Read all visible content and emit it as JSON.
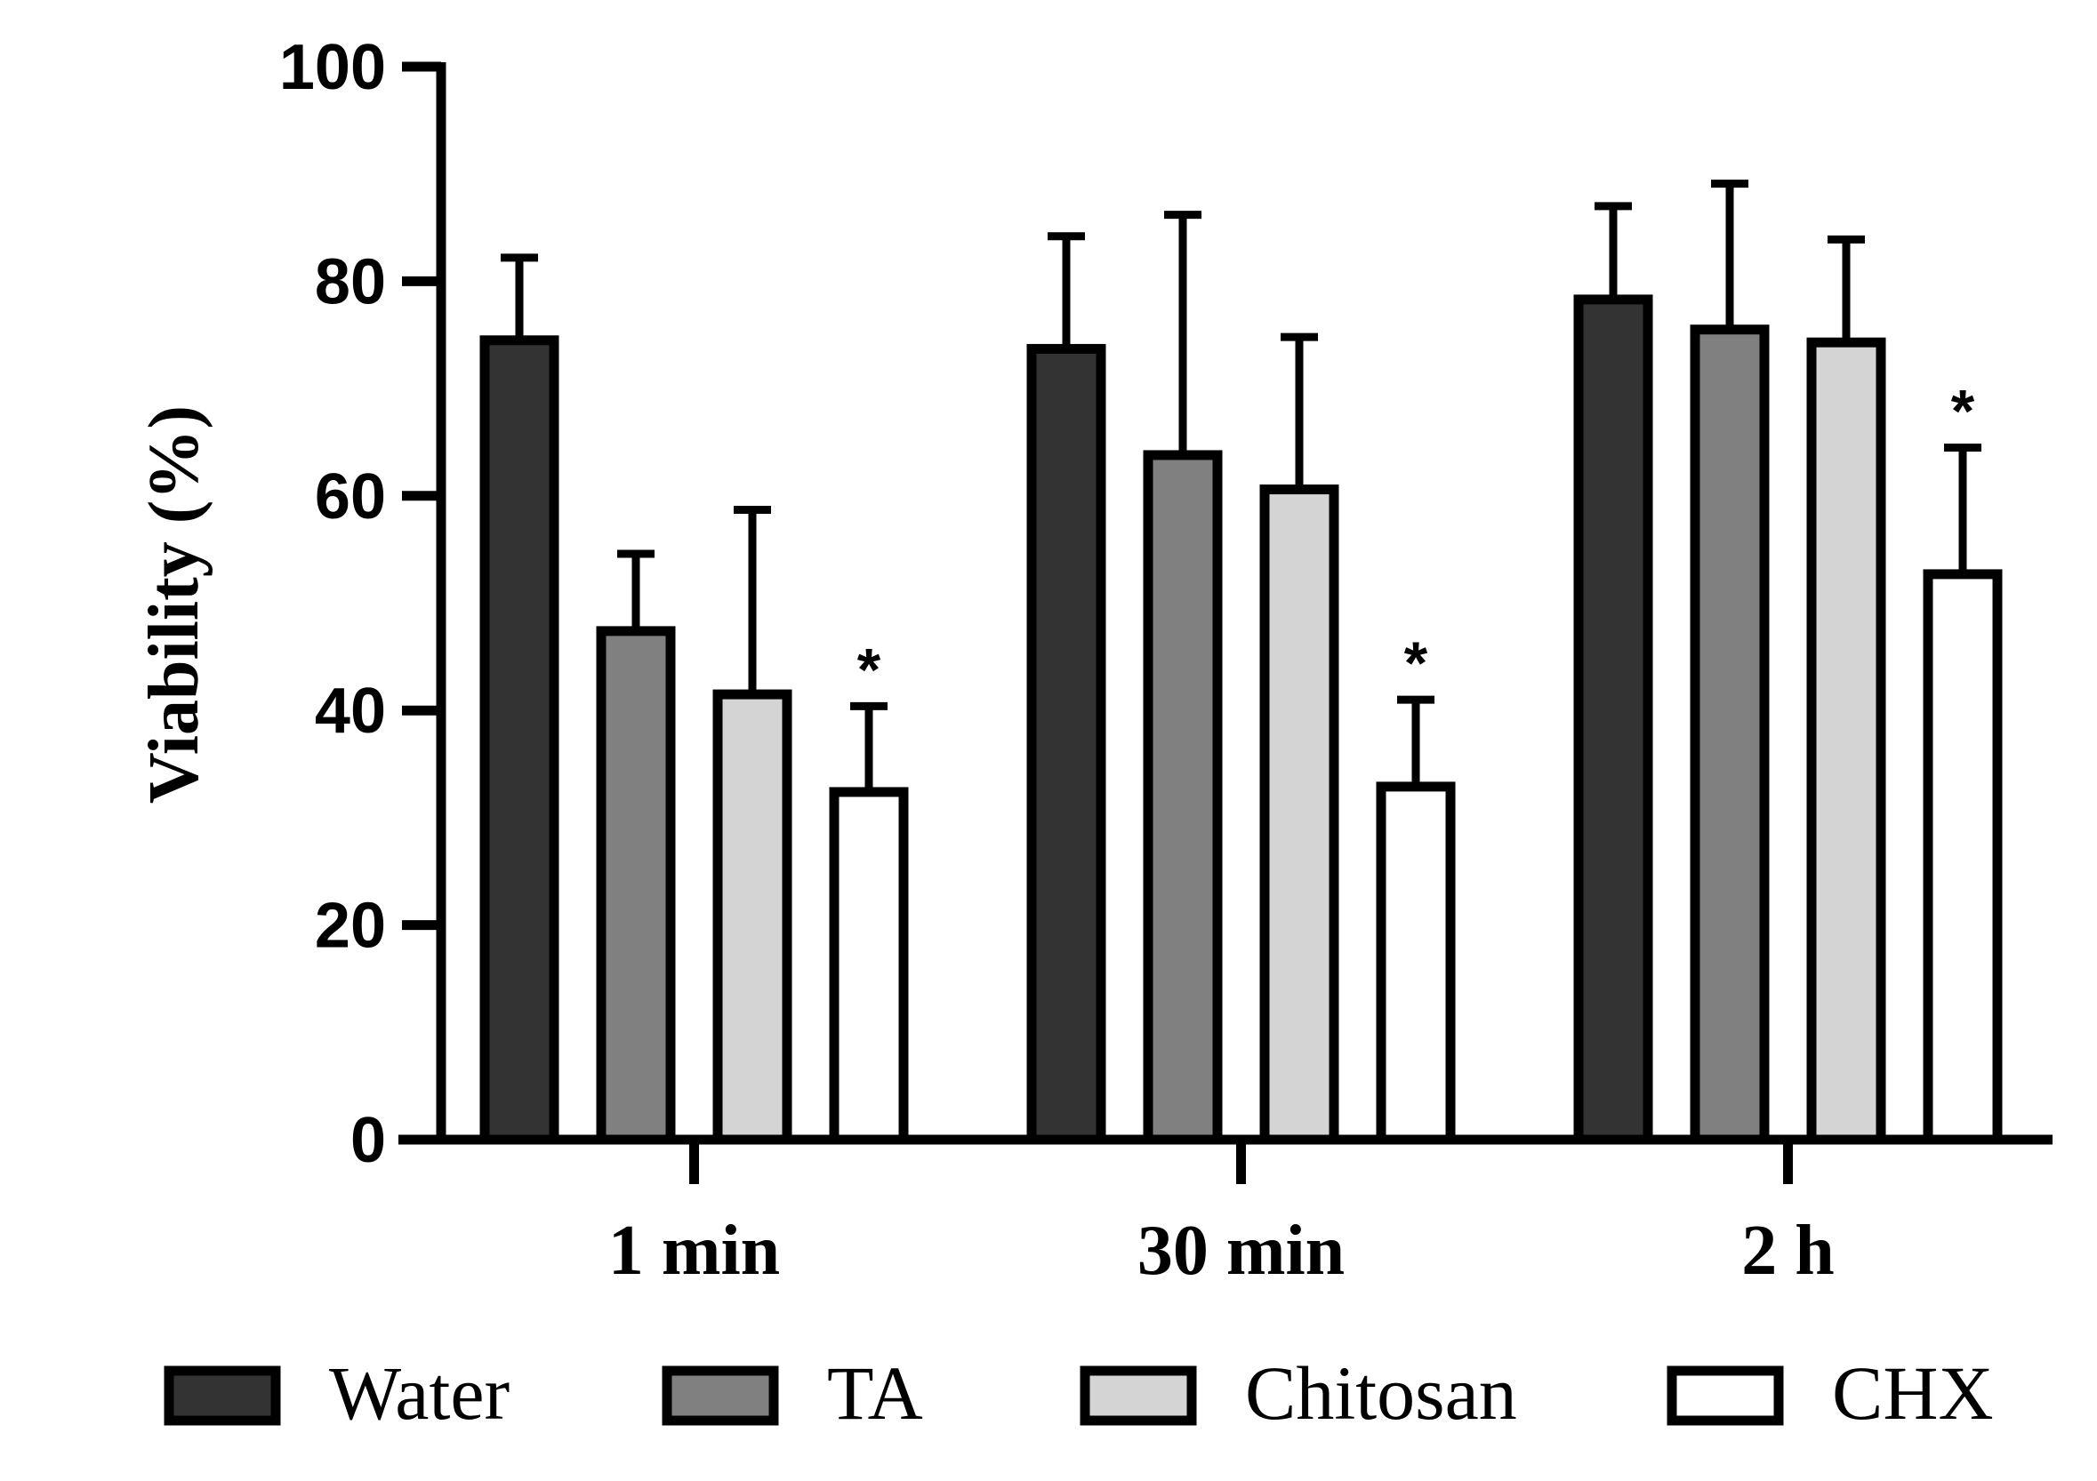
{
  "chart_data": {
    "type": "bar",
    "title": "",
    "xlabel": "",
    "ylabel": "Viability (%)",
    "ylim": [
      0,
      100
    ],
    "yticks": [
      "0",
      "20",
      "40",
      "60",
      "80",
      "100"
    ],
    "grid": false,
    "legend_position": "bottom",
    "categories": [
      "1 min",
      "30 min",
      "2 h"
    ],
    "series": [
      {
        "name": "Water",
        "color": "#333333",
        "values": [
          74.5,
          73.7,
          78.3
        ],
        "errors": [
          7.7,
          10.5,
          8.7
        ],
        "significant": [
          false,
          false,
          false
        ]
      },
      {
        "name": "TA",
        "color": "#808080",
        "values": [
          47.4,
          63.8,
          75.5
        ],
        "errors": [
          7.2,
          22.4,
          13.6
        ],
        "significant": [
          false,
          false,
          false
        ]
      },
      {
        "name": "Chitosan",
        "color": "#d4d4d4",
        "values": [
          41.5,
          60.6,
          74.3
        ],
        "errors": [
          17.2,
          14.2,
          9.6
        ],
        "significant": [
          false,
          false,
          false
        ]
      },
      {
        "name": "CHX",
        "color": "#ffffff",
        "values": [
          32.4,
          32.9,
          52.7
        ],
        "errors": [
          8.0,
          8.1,
          11.8
        ],
        "significant": [
          true,
          true,
          true
        ]
      }
    ],
    "significance_marker": "*"
  }
}
